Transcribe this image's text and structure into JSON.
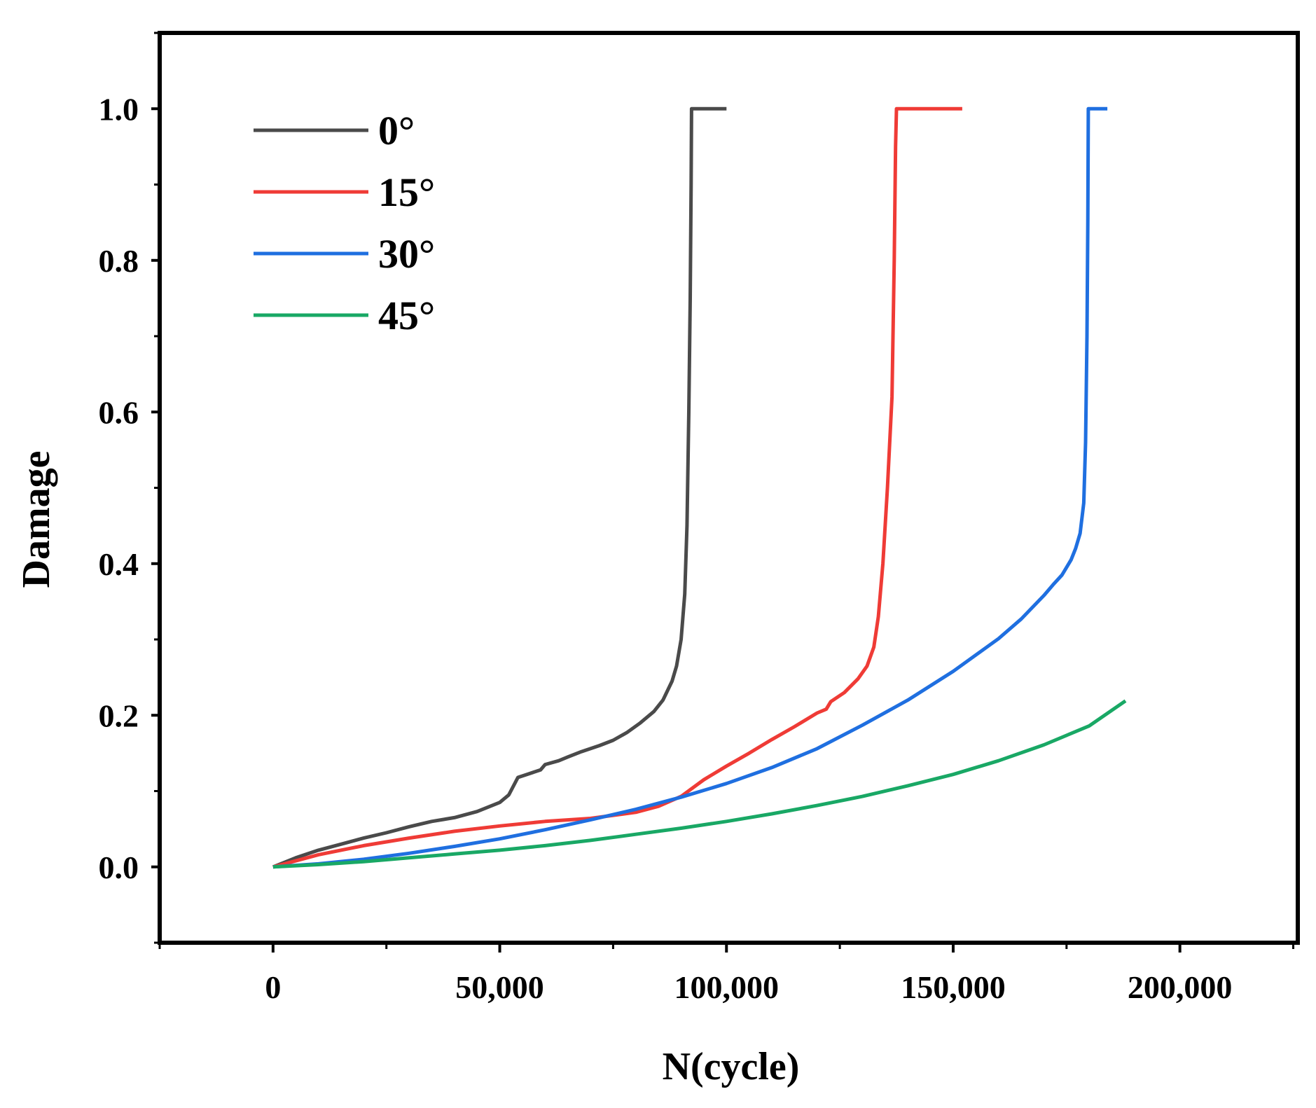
{
  "chart_data": {
    "type": "line",
    "title": "",
    "xlabel": "N(cycle)",
    "ylabel": "Damage",
    "xlim": [
      -25000,
      226000
    ],
    "ylim": [
      -0.1,
      1.1
    ],
    "xticks": [
      0,
      50000,
      100000,
      150000,
      200000
    ],
    "xtick_labels": [
      "0",
      "50,000",
      "100,000",
      "150,000",
      "200,000"
    ],
    "yticks": [
      0.0,
      0.2,
      0.4,
      0.6,
      0.8,
      1.0
    ],
    "ytick_labels": [
      "0.0",
      "0.2",
      "0.4",
      "0.6",
      "0.8",
      "1.0"
    ],
    "legend_position": "top-left",
    "series": [
      {
        "name": "0°",
        "color": "#4a4a4a",
        "points": [
          [
            0,
            0
          ],
          [
            5000,
            0.012
          ],
          [
            10000,
            0.022
          ],
          [
            15000,
            0.03
          ],
          [
            20000,
            0.038
          ],
          [
            25000,
            0.045
          ],
          [
            30000,
            0.053
          ],
          [
            35000,
            0.06
          ],
          [
            40000,
            0.065
          ],
          [
            45000,
            0.073
          ],
          [
            50000,
            0.085
          ],
          [
            52000,
            0.095
          ],
          [
            54000,
            0.118
          ],
          [
            56000,
            0.122
          ],
          [
            58000,
            0.126
          ],
          [
            59000,
            0.128
          ],
          [
            60000,
            0.135
          ],
          [
            63000,
            0.14
          ],
          [
            65000,
            0.145
          ],
          [
            68000,
            0.152
          ],
          [
            72000,
            0.16
          ],
          [
            75000,
            0.167
          ],
          [
            78000,
            0.177
          ],
          [
            81000,
            0.19
          ],
          [
            84000,
            0.205
          ],
          [
            86000,
            0.22
          ],
          [
            88000,
            0.245
          ],
          [
            89000,
            0.265
          ],
          [
            90000,
            0.3
          ],
          [
            90800,
            0.36
          ],
          [
            91300,
            0.45
          ],
          [
            91700,
            0.6
          ],
          [
            92000,
            0.75
          ],
          [
            92200,
            0.9
          ],
          [
            92300,
            1.0
          ],
          [
            100000,
            1.0
          ]
        ]
      },
      {
        "name": "15°",
        "color": "#ef3b36",
        "points": [
          [
            0,
            0
          ],
          [
            10000,
            0.016
          ],
          [
            20000,
            0.028
          ],
          [
            30000,
            0.038
          ],
          [
            40000,
            0.047
          ],
          [
            50000,
            0.054
          ],
          [
            60000,
            0.06
          ],
          [
            70000,
            0.064
          ],
          [
            80000,
            0.072
          ],
          [
            85000,
            0.08
          ],
          [
            90000,
            0.093
          ],
          [
            95000,
            0.115
          ],
          [
            100000,
            0.133
          ],
          [
            105000,
            0.15
          ],
          [
            110000,
            0.168
          ],
          [
            115000,
            0.185
          ],
          [
            120000,
            0.203
          ],
          [
            122000,
            0.208
          ],
          [
            123000,
            0.218
          ],
          [
            126000,
            0.23
          ],
          [
            129000,
            0.248
          ],
          [
            131000,
            0.265
          ],
          [
            132500,
            0.29
          ],
          [
            133500,
            0.33
          ],
          [
            134500,
            0.4
          ],
          [
            135500,
            0.5
          ],
          [
            136500,
            0.62
          ],
          [
            137000,
            0.8
          ],
          [
            137300,
            0.95
          ],
          [
            137500,
            1.0
          ],
          [
            152000,
            1.0
          ]
        ]
      },
      {
        "name": "30°",
        "color": "#1f6fe0",
        "points": [
          [
            0,
            0
          ],
          [
            10000,
            0.004
          ],
          [
            20000,
            0.01
          ],
          [
            30000,
            0.018
          ],
          [
            40000,
            0.027
          ],
          [
            50000,
            0.037
          ],
          [
            60000,
            0.049
          ],
          [
            70000,
            0.062
          ],
          [
            80000,
            0.076
          ],
          [
            90000,
            0.092
          ],
          [
            100000,
            0.11
          ],
          [
            110000,
            0.131
          ],
          [
            120000,
            0.156
          ],
          [
            130000,
            0.187
          ],
          [
            140000,
            0.22
          ],
          [
            150000,
            0.258
          ],
          [
            160000,
            0.301
          ],
          [
            165000,
            0.327
          ],
          [
            170000,
            0.358
          ],
          [
            172000,
            0.372
          ],
          [
            174000,
            0.385
          ],
          [
            176000,
            0.405
          ],
          [
            177000,
            0.42
          ],
          [
            178000,
            0.44
          ],
          [
            178800,
            0.48
          ],
          [
            179200,
            0.56
          ],
          [
            179500,
            0.7
          ],
          [
            179700,
            0.85
          ],
          [
            179800,
            1.0
          ],
          [
            184000,
            1.0
          ]
        ]
      },
      {
        "name": "45°",
        "color": "#19a865",
        "points": [
          [
            0,
            0
          ],
          [
            10000,
            0.003
          ],
          [
            20000,
            0.007
          ],
          [
            30000,
            0.012
          ],
          [
            40000,
            0.017
          ],
          [
            50000,
            0.022
          ],
          [
            60000,
            0.028
          ],
          [
            70000,
            0.035
          ],
          [
            80000,
            0.043
          ],
          [
            90000,
            0.051
          ],
          [
            100000,
            0.06
          ],
          [
            110000,
            0.07
          ],
          [
            120000,
            0.081
          ],
          [
            130000,
            0.093
          ],
          [
            140000,
            0.107
          ],
          [
            150000,
            0.122
          ],
          [
            160000,
            0.14
          ],
          [
            170000,
            0.161
          ],
          [
            180000,
            0.186
          ],
          [
            188000,
            0.219
          ]
        ]
      }
    ]
  }
}
